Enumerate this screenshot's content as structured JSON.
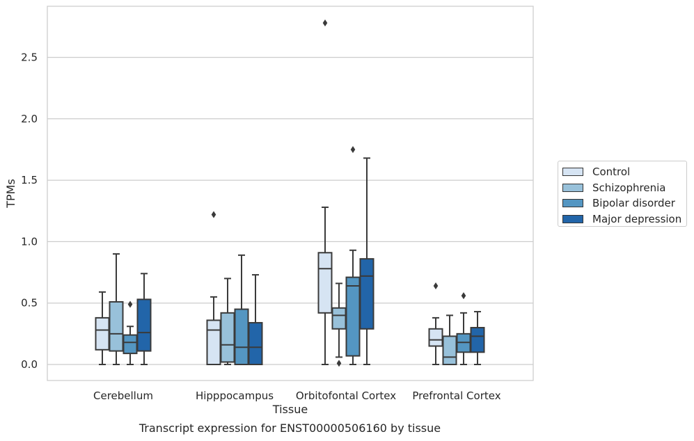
{
  "chart_data": {
    "type": "box",
    "xlabel": "Tissue",
    "ylabel": "TPMs",
    "categories": [
      "Cerebellum",
      "Hipppocampus",
      "Orbitofontal Cortex",
      "Prefrontal Cortex"
    ],
    "ylim": [
      -0.13,
      2.92
    ],
    "yticks": [
      0.0,
      0.5,
      1.0,
      1.5,
      2.0,
      2.5
    ],
    "ytick_labels": [
      "0.0",
      "0.5",
      "1.0",
      "1.5",
      "2.0",
      "2.5"
    ],
    "grid": "horizontal",
    "legend_position": "right",
    "series": [
      {
        "name": "Control",
        "color": "#d6e4f3",
        "boxes": [
          {
            "whislo": 0.0,
            "q1": 0.12,
            "med": 0.28,
            "q3": 0.38,
            "whishi": 0.59,
            "fliers": []
          },
          {
            "whislo": 0.0,
            "q1": 0.0,
            "med": 0.28,
            "q3": 0.36,
            "whishi": 0.55,
            "fliers": [
              1.22
            ]
          },
          {
            "whislo": 0.0,
            "q1": 0.42,
            "med": 0.78,
            "q3": 0.91,
            "whishi": 1.28,
            "fliers": [
              2.78
            ]
          },
          {
            "whislo": 0.0,
            "q1": 0.15,
            "med": 0.2,
            "q3": 0.29,
            "whishi": 0.38,
            "fliers": [
              0.64
            ]
          }
        ]
      },
      {
        "name": "Schizophrenia",
        "color": "#98c1da",
        "boxes": [
          {
            "whislo": 0.0,
            "q1": 0.11,
            "med": 0.25,
            "q3": 0.51,
            "whishi": 0.9,
            "fliers": []
          },
          {
            "whislo": 0.0,
            "q1": 0.02,
            "med": 0.16,
            "q3": 0.42,
            "whishi": 0.7,
            "fliers": []
          },
          {
            "whislo": 0.06,
            "q1": 0.29,
            "med": 0.4,
            "q3": 0.46,
            "whishi": 0.66,
            "fliers": [
              0.01
            ]
          },
          {
            "whislo": 0.0,
            "q1": 0.0,
            "med": 0.06,
            "q3": 0.23,
            "whishi": 0.4,
            "fliers": []
          }
        ]
      },
      {
        "name": "Bipolar disorder",
        "color": "#5496c2",
        "boxes": [
          {
            "whislo": 0.0,
            "q1": 0.09,
            "med": 0.18,
            "q3": 0.24,
            "whishi": 0.31,
            "fliers": [
              0.49
            ]
          },
          {
            "whislo": 0.0,
            "q1": 0.0,
            "med": 0.14,
            "q3": 0.45,
            "whishi": 0.89,
            "fliers": []
          },
          {
            "whislo": 0.0,
            "q1": 0.07,
            "med": 0.64,
            "q3": 0.71,
            "whishi": 0.93,
            "fliers": [
              1.75
            ]
          },
          {
            "whislo": 0.0,
            "q1": 0.1,
            "med": 0.18,
            "q3": 0.25,
            "whishi": 0.42,
            "fliers": [
              0.56
            ]
          }
        ]
      },
      {
        "name": "Major depression",
        "color": "#2265a9",
        "boxes": [
          {
            "whislo": 0.0,
            "q1": 0.11,
            "med": 0.26,
            "q3": 0.53,
            "whishi": 0.74,
            "fliers": []
          },
          {
            "whislo": 0.0,
            "q1": 0.0,
            "med": 0.14,
            "q3": 0.34,
            "whishi": 0.73,
            "fliers": []
          },
          {
            "whislo": 0.0,
            "q1": 0.29,
            "med": 0.72,
            "q3": 0.86,
            "whishi": 1.68,
            "fliers": []
          },
          {
            "whislo": 0.0,
            "q1": 0.1,
            "med": 0.23,
            "q3": 0.3,
            "whishi": 0.43,
            "fliers": []
          }
        ]
      }
    ],
    "caption": "Transcript expression for ENST00000506160 by tissue"
  }
}
